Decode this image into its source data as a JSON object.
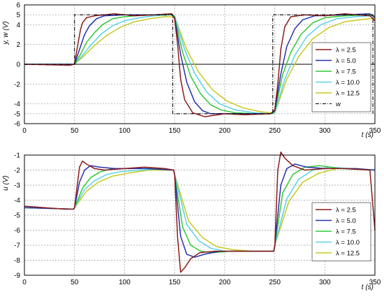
{
  "chart_data": [
    {
      "type": "line",
      "title": "",
      "ylabel": "y, w (V)",
      "xlabel": "t (s)",
      "xlim": [
        0,
        350
      ],
      "ylim": [
        -6,
        6
      ],
      "xticks": [
        0,
        50,
        100,
        150,
        200,
        250,
        300,
        350
      ],
      "yticks": [
        -6,
        -5,
        -4,
        -2,
        0,
        2,
        4,
        5,
        6
      ],
      "grid": true,
      "legend_position": "right",
      "reference": {
        "name": "w",
        "style": "dash-dot",
        "color": "#000000",
        "x": [
          0,
          50,
          50,
          148,
          148,
          248,
          248,
          348,
          348
        ],
        "y": [
          0,
          0,
          5,
          5,
          -5,
          -5,
          5,
          5,
          -5
        ]
      },
      "series": [
        {
          "name": "λ = 2.5",
          "color": "#8b1a1a",
          "x": [
            0,
            45,
            50,
            53,
            56,
            58,
            62,
            70,
            90,
            110,
            130,
            147,
            150,
            153,
            156,
            160,
            168,
            180,
            200,
            220,
            246,
            250,
            253,
            256,
            260,
            266,
            280,
            300,
            320,
            345,
            350
          ],
          "y": [
            0,
            -0.1,
            0,
            1.8,
            3.5,
            4.2,
            4.7,
            4.9,
            5.1,
            4.9,
            5.0,
            5.1,
            4.6,
            2.0,
            -1.5,
            -3.6,
            -4.9,
            -5.3,
            -5.0,
            -5.1,
            -5.0,
            -4.6,
            -2.0,
            1.5,
            3.8,
            4.8,
            5.0,
            4.9,
            5.1,
            4.9,
            4.4
          ]
        },
        {
          "name": "λ = 5.0",
          "color": "#2430b0",
          "x": [
            0,
            50,
            55,
            60,
            65,
            72,
            80,
            100,
            130,
            147,
            150,
            156,
            162,
            170,
            178,
            186,
            200,
            220,
            246,
            250,
            256,
            262,
            270,
            278,
            290,
            320,
            345,
            350
          ],
          "y": [
            0,
            0,
            1.5,
            3.0,
            3.9,
            4.6,
            4.9,
            5.0,
            5.0,
            5.1,
            4.7,
            1.0,
            -1.8,
            -3.8,
            -4.7,
            -5.0,
            -5.0,
            -5.0,
            -5.0,
            -4.7,
            -1.0,
            1.8,
            3.6,
            4.5,
            4.9,
            5.0,
            5.1,
            4.7
          ]
        },
        {
          "name": "λ = 7.5",
          "color": "#32c832",
          "x": [
            0,
            50,
            56,
            62,
            70,
            78,
            88,
            100,
            120,
            147,
            150,
            158,
            166,
            176,
            186,
            196,
            210,
            230,
            246,
            250,
            258,
            266,
            276,
            288,
            300,
            320,
            345,
            350
          ],
          "y": [
            0,
            0,
            1.0,
            2.2,
            3.2,
            4.0,
            4.6,
            4.8,
            5.0,
            5.0,
            4.8,
            1.2,
            -1.2,
            -3.0,
            -4.1,
            -4.6,
            -4.9,
            -5.0,
            -5.0,
            -4.8,
            -1.0,
            1.2,
            3.0,
            4.2,
            4.7,
            4.9,
            5.0,
            4.8
          ]
        },
        {
          "name": "λ = 10.0",
          "color": "#5ad2e6",
          "x": [
            0,
            50,
            58,
            66,
            76,
            88,
            100,
            115,
            130,
            147,
            150,
            160,
            170,
            182,
            195,
            210,
            230,
            246,
            250,
            260,
            270,
            282,
            296,
            312,
            330,
            345,
            350
          ],
          "y": [
            0,
            0,
            0.9,
            1.9,
            3.0,
            3.9,
            4.4,
            4.7,
            4.9,
            5.0,
            4.9,
            1.5,
            -0.9,
            -2.8,
            -4.0,
            -4.6,
            -4.9,
            -5.0,
            -4.9,
            -1.5,
            0.9,
            2.8,
            4.0,
            4.6,
            4.8,
            4.9,
            4.9
          ]
        },
        {
          "name": "λ = 12.5",
          "color": "#c8c81e",
          "x": [
            0,
            50,
            60,
            70,
            82,
            95,
            110,
            125,
            140,
            147,
            150,
            162,
            174,
            188,
            202,
            218,
            236,
            246,
            250,
            262,
            274,
            288,
            304,
            320,
            335,
            345,
            350
          ],
          "y": [
            0,
            0,
            0.9,
            1.9,
            2.9,
            3.7,
            4.3,
            4.6,
            4.8,
            4.8,
            4.8,
            1.5,
            -0.8,
            -2.6,
            -3.7,
            -4.4,
            -4.8,
            -4.9,
            -4.9,
            -1.5,
            0.8,
            2.6,
            3.7,
            4.3,
            4.5,
            4.6,
            4.6
          ]
        }
      ]
    },
    {
      "type": "line",
      "title": "",
      "ylabel": "u (V)",
      "xlabel": "t (s)",
      "xlim": [
        0,
        350
      ],
      "ylim": [
        -9,
        -1
      ],
      "xticks": [
        0,
        50,
        100,
        150,
        200,
        250,
        300,
        350
      ],
      "yticks": [
        -9,
        -8,
        -7,
        -6,
        -5,
        -4,
        -3,
        -2,
        -1
      ],
      "grid": true,
      "legend_position": "right",
      "series": [
        {
          "name": "λ = 2.5",
          "color": "#8b1a1a",
          "x": [
            0,
            20,
            40,
            49,
            50,
            55,
            58,
            62,
            70,
            80,
            100,
            120,
            140,
            149,
            150,
            153,
            156,
            160,
            166,
            175,
            190,
            210,
            230,
            249,
            250,
            253,
            256,
            260,
            268,
            280,
            300,
            320,
            345,
            350
          ],
          "y": [
            -4.4,
            -4.5,
            -4.6,
            -4.6,
            -4.5,
            -1.8,
            -1.4,
            -1.6,
            -1.9,
            -2.0,
            -1.9,
            -1.8,
            -1.9,
            -2.0,
            -2.3,
            -6.5,
            -8.8,
            -8.5,
            -7.9,
            -7.5,
            -7.4,
            -7.4,
            -7.4,
            -7.4,
            -7.1,
            -2.0,
            -0.8,
            -1.2,
            -1.7,
            -2.0,
            -1.9,
            -1.9,
            -2.0,
            -6.0
          ]
        },
        {
          "name": "λ = 5.0",
          "color": "#2430b0",
          "x": [
            0,
            49,
            50,
            55,
            60,
            66,
            75,
            90,
            120,
            149,
            150,
            156,
            162,
            170,
            180,
            195,
            220,
            249,
            250,
            256,
            262,
            270,
            282,
            300,
            330,
            350
          ],
          "y": [
            -4.5,
            -4.6,
            -4.5,
            -2.8,
            -2.0,
            -1.7,
            -1.8,
            -1.9,
            -1.9,
            -2.0,
            -2.3,
            -6.4,
            -7.6,
            -7.8,
            -7.6,
            -7.4,
            -7.4,
            -7.4,
            -7.0,
            -3.0,
            -1.9,
            -1.6,
            -1.8,
            -1.9,
            -1.9,
            -2.0
          ]
        },
        {
          "name": "λ = 7.5",
          "color": "#32c832",
          "x": [
            0,
            49,
            50,
            58,
            66,
            76,
            88,
            105,
            130,
            149,
            150,
            158,
            166,
            176,
            188,
            205,
            230,
            249,
            250,
            258,
            268,
            280,
            295,
            315,
            350
          ],
          "y": [
            -4.5,
            -4.6,
            -4.5,
            -3.2,
            -2.5,
            -2.1,
            -1.9,
            -1.9,
            -1.9,
            -2.0,
            -2.3,
            -5.8,
            -7.0,
            -7.4,
            -7.5,
            -7.4,
            -7.4,
            -7.4,
            -7.0,
            -3.5,
            -2.3,
            -1.8,
            -1.7,
            -1.9,
            -2.0
          ]
        },
        {
          "name": "λ = 10.0",
          "color": "#5ad2e6",
          "x": [
            0,
            49,
            50,
            60,
            70,
            82,
            96,
            115,
            140,
            149,
            150,
            162,
            174,
            186,
            200,
            220,
            249,
            250,
            262,
            274,
            288,
            305,
            325,
            350
          ],
          "y": [
            -4.5,
            -4.6,
            -4.5,
            -3.3,
            -2.7,
            -2.3,
            -2.1,
            -2.0,
            -1.9,
            -2.0,
            -2.3,
            -5.6,
            -6.7,
            -7.2,
            -7.4,
            -7.4,
            -7.4,
            -7.0,
            -3.9,
            -2.6,
            -2.0,
            -1.8,
            -1.9,
            -2.0
          ]
        },
        {
          "name": "λ = 12.5",
          "color": "#c8c81e",
          "x": [
            0,
            49,
            50,
            62,
            74,
            88,
            104,
            124,
            149,
            150,
            164,
            178,
            192,
            208,
            228,
            249,
            250,
            264,
            278,
            294,
            312,
            332,
            350
          ],
          "y": [
            -4.5,
            -4.6,
            -4.5,
            -3.4,
            -2.8,
            -2.4,
            -2.2,
            -2.0,
            -2.0,
            -2.3,
            -5.4,
            -6.5,
            -7.1,
            -7.3,
            -7.4,
            -7.4,
            -7.0,
            -4.1,
            -2.8,
            -2.2,
            -1.9,
            -1.9,
            -2.0
          ]
        }
      ]
    }
  ]
}
